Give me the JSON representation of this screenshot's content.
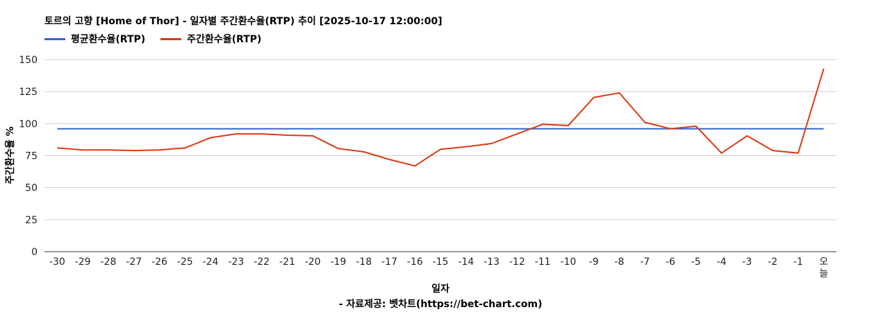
{
  "chart_data": {
    "type": "line",
    "title": "토르의 고향 [Home of Thor] - 일자별 주간환수율(RTP) 추이 [2025-10-17 12:00:00]",
    "xlabel": "일자",
    "ylabel": "주간환수율 %",
    "source": "- 자료제공: 벳차트(https://bet-chart.com)",
    "categories": [
      "-30",
      "-29",
      "-28",
      "-27",
      "-26",
      "-25",
      "-24",
      "-23",
      "-22",
      "-21",
      "-20",
      "-19",
      "-18",
      "-17",
      "-16",
      "-15",
      "-14",
      "-13",
      "-12",
      "-11",
      "-10",
      "-9",
      "-8",
      "-7",
      "-6",
      "-5",
      "-4",
      "-3",
      "-2",
      "-1",
      "오늘"
    ],
    "ylim": [
      0,
      150
    ],
    "yticks": [
      0,
      25,
      50,
      75,
      100,
      125,
      150
    ],
    "grid": true,
    "legend_position": "top-left",
    "series": [
      {
        "name": "평균환수율(RTP)",
        "color": "#3366cc",
        "values": [
          96,
          96,
          96,
          96,
          96,
          96,
          96,
          96,
          96,
          96,
          96,
          96,
          96,
          96,
          96,
          96,
          96,
          96,
          96,
          96,
          96,
          96,
          96,
          96,
          96,
          96,
          96,
          96,
          96,
          96,
          96
        ]
      },
      {
        "name": "주간환수율(RTP)",
        "color": "#dc3912",
        "values": [
          81,
          79.5,
          79.5,
          79,
          79.5,
          81,
          89,
          92,
          92,
          91,
          90.5,
          80.5,
          78,
          72,
          67,
          80,
          82,
          84.5,
          92,
          99.5,
          98.5,
          120.5,
          124,
          101,
          96,
          98,
          77,
          90.5,
          79,
          77,
          143
        ]
      }
    ]
  }
}
